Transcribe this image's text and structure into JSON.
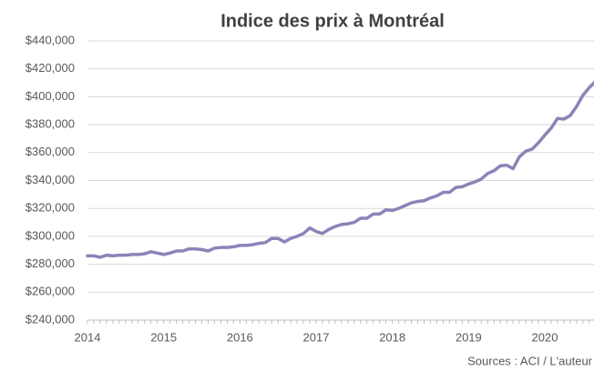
{
  "chart_data": {
    "type": "line",
    "title": "Indice des prix à Montréal",
    "annotation": "Sources : ACI / L'auteur",
    "categories": [
      "2014",
      null,
      null,
      null,
      null,
      null,
      null,
      null,
      null,
      null,
      null,
      null,
      "2015",
      null,
      null,
      null,
      null,
      null,
      null,
      null,
      null,
      null,
      null,
      null,
      "2016",
      null,
      null,
      null,
      null,
      null,
      null,
      null,
      null,
      null,
      null,
      null,
      "2017",
      null,
      null,
      null,
      null,
      null,
      null,
      null,
      null,
      null,
      null,
      null,
      "2018",
      null,
      null,
      null,
      null,
      null,
      null,
      null,
      null,
      null,
      null,
      null,
      "2019",
      null,
      null,
      null,
      null,
      null,
      null,
      null,
      null,
      null,
      null,
      null,
      "2020",
      null,
      null,
      null,
      null,
      null,
      null,
      null,
      null
    ],
    "series": [
      {
        "name": "Indice",
        "color": "#8b84b8",
        "values": [
          286000,
          286000,
          285000,
          286500,
          286000,
          286500,
          286500,
          287000,
          287000,
          287500,
          289000,
          288000,
          287000,
          288000,
          289500,
          289500,
          291000,
          291000,
          290500,
          289500,
          291500,
          292000,
          292000,
          292500,
          293500,
          293500,
          294000,
          295000,
          295500,
          298500,
          298500,
          296000,
          298500,
          300000,
          302000,
          306000,
          303500,
          302000,
          305000,
          307000,
          308500,
          309000,
          310000,
          313000,
          313000,
          316000,
          316000,
          319000,
          318500,
          320000,
          322000,
          324000,
          325000,
          325500,
          327500,
          329000,
          331500,
          331500,
          335000,
          335500,
          337500,
          339000,
          341000,
          345000,
          347000,
          350500,
          351000,
          348500,
          357000,
          361000,
          362500,
          367000,
          372500,
          377500,
          384500,
          384000,
          386500,
          393000,
          401000,
          406500,
          411000
        ]
      }
    ],
    "ylim": [
      240000,
      440000
    ],
    "yticks": [
      {
        "value": 240000,
        "label": "$240,000"
      },
      {
        "value": 260000,
        "label": "$260,000"
      },
      {
        "value": 280000,
        "label": "$280,000"
      },
      {
        "value": 300000,
        "label": "$300,000"
      },
      {
        "value": 320000,
        "label": "$320,000"
      },
      {
        "value": 340000,
        "label": "$340,000"
      },
      {
        "value": 360000,
        "label": "$360,000"
      },
      {
        "value": 380000,
        "label": "$380,000"
      },
      {
        "value": 400000,
        "label": "$400,000"
      },
      {
        "value": 420000,
        "label": "$420,000"
      },
      {
        "value": 440000,
        "label": "$440,000"
      }
    ],
    "grid": true
  }
}
